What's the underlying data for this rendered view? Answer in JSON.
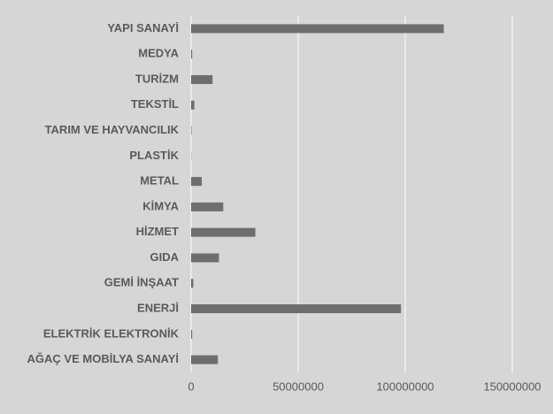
{
  "chart_data": {
    "type": "bar",
    "orientation": "horizontal",
    "categories": [
      "YAPI SANAYİ",
      "MEDYA",
      "TURİZM",
      "TEKSTİL",
      "TARIM VE HAYVANCILIK",
      "PLASTİK",
      "METAL",
      "KİMYA",
      "HİZMET",
      "GIDA",
      "GEMİ İNŞAAT",
      "ENERJİ",
      "ELEKTRİK ELEKTRONİK",
      "AĞAÇ VE MOBİLYA SANAYİ"
    ],
    "values": [
      118000000,
      500000,
      10000000,
      1500000,
      200000,
      100000,
      5000000,
      15000000,
      30000000,
      13000000,
      1000000,
      98000000,
      500000,
      12500000
    ],
    "color": "#6e6e6e",
    "xlim": [
      0,
      150000000
    ],
    "xticks": [
      0,
      50000000,
      100000000,
      150000000
    ],
    "grid": true
  }
}
